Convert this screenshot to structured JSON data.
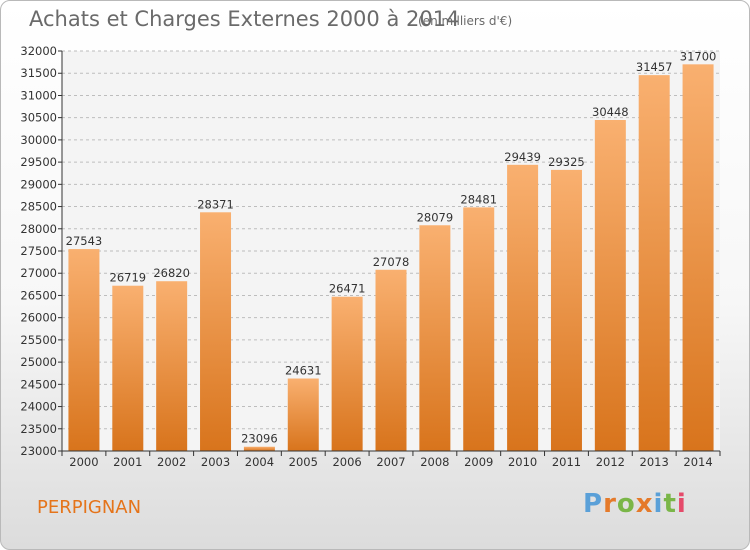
{
  "header": {
    "title": "Achats et Charges Externes 2000 à 2014",
    "subtitle": "(en milliers d'€)"
  },
  "footer": {
    "city": "PERPIGNAN",
    "logo_text": "Proxiti",
    "logo_colors": [
      "#5aa0d8",
      "#e57a2a",
      "#7ab648",
      "#e57a2a",
      "#5aa0d8",
      "#7ab648",
      "#e54a6a"
    ]
  },
  "colors": {
    "bar_light": "#f9b070",
    "bar_dark": "#d8741c",
    "grid": "#bdbdbd",
    "axis": "#333333"
  },
  "chart_data": {
    "type": "bar",
    "title": "Achats et Charges Externes 2000 à 2014",
    "subtitle": "(en milliers d'€)",
    "categories": [
      "2000",
      "2001",
      "2002",
      "2003",
      "2004",
      "2005",
      "2006",
      "2007",
      "2008",
      "2009",
      "2010",
      "2011",
      "2012",
      "2013",
      "2014"
    ],
    "values": [
      27543,
      26719,
      26820,
      28371,
      23096,
      24631,
      26471,
      27078,
      28079,
      28481,
      29439,
      29325,
      30448,
      31457,
      31700
    ],
    "ylim": [
      23000,
      32000
    ],
    "ytick_step": 500,
    "grid": true,
    "xlabel": "",
    "ylabel": ""
  }
}
